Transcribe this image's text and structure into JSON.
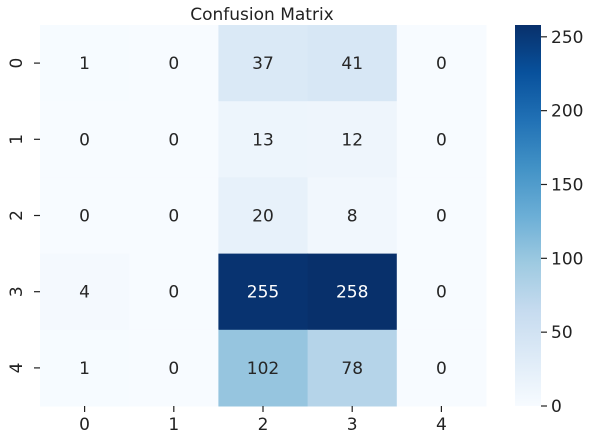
{
  "chart_data": {
    "type": "heatmap",
    "title": "Confusion Matrix",
    "x_tick_labels": [
      "0",
      "1",
      "2",
      "3",
      "4"
    ],
    "y_tick_labels": [
      "0",
      "1",
      "2",
      "3",
      "4"
    ],
    "matrix": [
      [
        1,
        0,
        37,
        41,
        0
      ],
      [
        0,
        0,
        13,
        12,
        0
      ],
      [
        0,
        0,
        20,
        8,
        0
      ],
      [
        4,
        0,
        255,
        258,
        0
      ],
      [
        1,
        0,
        102,
        78,
        0
      ]
    ],
    "colorbar": {
      "colormap": "Blues",
      "vmin": 0,
      "vmax": 258,
      "tick_values": [
        0,
        50,
        100,
        150,
        200,
        250
      ],
      "tick_labels": [
        "0",
        "50",
        "100",
        "150",
        "200",
        "250"
      ]
    }
  }
}
